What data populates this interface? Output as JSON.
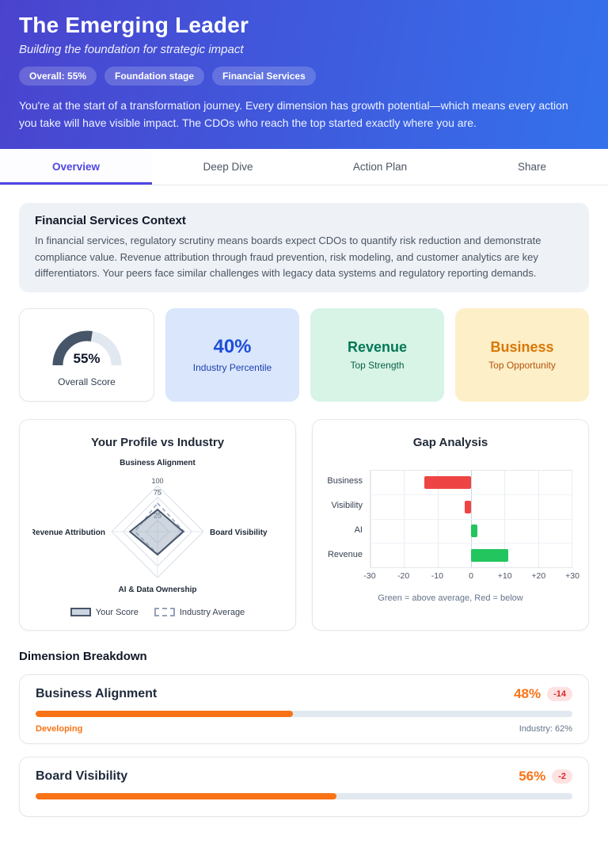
{
  "header": {
    "title": "The Emerging Leader",
    "subtitle": "Building the foundation for strategic impact",
    "badges": [
      "Overall: 55%",
      "Foundation stage",
      "Financial Services"
    ],
    "description": "You're at the start of a transformation journey. Every dimension has growth potential—which means every action you take will have visible impact. The CDOs who reach the top started exactly where you are."
  },
  "tabs": [
    {
      "label": "Overview",
      "active": true
    },
    {
      "label": "Deep Dive",
      "active": false
    },
    {
      "label": "Action Plan",
      "active": false
    },
    {
      "label": "Share",
      "active": false
    }
  ],
  "context_card": {
    "title": "Financial Services Context",
    "body": "In financial services, regulatory scrutiny means boards expect CDOs to quantify risk reduction and demonstrate compliance value. Revenue attribution through fraud prevention, risk modeling, and customer analytics are key differentiators. Your peers face similar challenges with legacy data systems and regulatory reporting demands."
  },
  "stat_cards": {
    "overall": {
      "value": "55%",
      "label": "Overall Score",
      "percent": 55
    },
    "percentile": {
      "value": "40%",
      "label": "Industry Percentile"
    },
    "strength": {
      "value": "Revenue",
      "label": "Top Strength"
    },
    "opportunity": {
      "value": "Business",
      "label": "Top Opportunity"
    }
  },
  "chart_data": [
    {
      "type": "radar",
      "title": "Your Profile vs Industry",
      "axes": [
        "Business Alignment",
        "Board Visibility",
        "AI & Data Ownership",
        "Revenue Attribution"
      ],
      "tick_labels": [
        25,
        75,
        100
      ],
      "max": 100,
      "series": [
        {
          "name": "Your Score",
          "values": [
            48,
            56,
            50,
            60
          ],
          "style": "solid-fill"
        },
        {
          "name": "Industry Average",
          "values": [
            62,
            58,
            48,
            49
          ],
          "style": "dashed"
        }
      ]
    },
    {
      "type": "bar",
      "orientation": "horizontal",
      "title": "Gap Analysis",
      "categories": [
        "Business",
        "Visibility",
        "AI",
        "Revenue"
      ],
      "values": [
        -14,
        -2,
        2,
        11
      ],
      "xlim": [
        -30,
        30
      ],
      "xticks": [
        "-30",
        "-20",
        "-10",
        "0",
        "+10",
        "+20",
        "+30"
      ],
      "caption": "Green = above average, Red = below",
      "positive_color": "#22c55e",
      "negative_color": "#ef4444"
    }
  ],
  "dimension_breakdown": {
    "title": "Dimension Breakdown",
    "items": [
      {
        "name": "Business Alignment",
        "score": "48%",
        "percent": 48,
        "gap": "-14",
        "stage": "Developing",
        "industry": "Industry: 62%"
      },
      {
        "name": "Board Visibility",
        "score": "56%",
        "percent": 56,
        "gap": "-2"
      }
    ]
  },
  "colors": {
    "accent": "#4f46e5",
    "progress": "#f97316",
    "positive": "#22c55e",
    "negative": "#ef4444"
  }
}
